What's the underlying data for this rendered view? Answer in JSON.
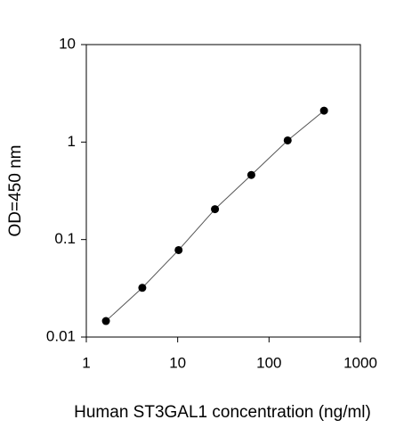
{
  "chart_data": {
    "type": "scatter",
    "x_label": "Human ST3GAL1 concentration (ng/ml)",
    "y_label": "OD=450 nm",
    "x": [
      1.64,
      4.1,
      10.24,
      25.6,
      64,
      160,
      400
    ],
    "values": [
      0.0146,
      0.032,
      0.078,
      0.205,
      0.46,
      1.04,
      2.1
    ],
    "color": "#000000",
    "connect": true,
    "xlog": true,
    "ylog": true,
    "xlim": [
      1,
      1000
    ],
    "ylim": [
      0.01,
      10
    ],
    "xticks": [
      1,
      10,
      100,
      1000
    ],
    "yticks": [
      0.01,
      0.1,
      1,
      10
    ]
  }
}
